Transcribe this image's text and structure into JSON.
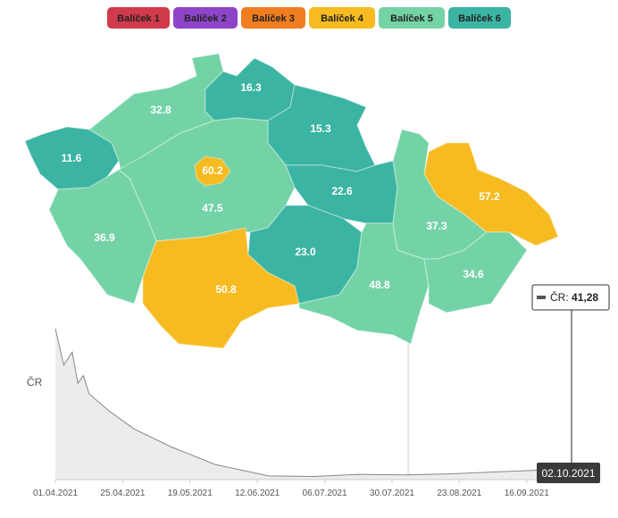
{
  "legend": [
    {
      "name": "Balíček 1",
      "color": "#d13a4a"
    },
    {
      "name": "Balíček 2",
      "color": "#8e44c8"
    },
    {
      "name": "Balíček 3",
      "color": "#f07d20"
    },
    {
      "name": "Balíček 4",
      "color": "#f6bb21"
    },
    {
      "name": "Balíček 5",
      "color": "#74d3a6"
    },
    {
      "name": "Balíček 6",
      "color": "#3cb4a3"
    }
  ],
  "map": {
    "regions": [
      {
        "value": 11.6,
        "group": 5
      },
      {
        "value": 32.8,
        "group": 4
      },
      {
        "value": 16.3,
        "group": 5
      },
      {
        "value": 15.3,
        "group": 5
      },
      {
        "value": 47.5,
        "group": 4
      },
      {
        "value": 60.2,
        "group": 3
      },
      {
        "value": 22.6,
        "group": 5
      },
      {
        "value": 36.9,
        "group": 4
      },
      {
        "value": 50.8,
        "group": 3
      },
      {
        "value": 23,
        "label": "23.0",
        "group": 5
      },
      {
        "value": 48.8,
        "group": 4
      },
      {
        "value": 37.3,
        "group": 4
      },
      {
        "value": 57.2,
        "group": 3
      },
      {
        "value": 34.6,
        "group": 4
      }
    ]
  },
  "chart_data": {
    "type": "area",
    "name": "ČR",
    "color": "#888888",
    "x": [
      "01.04.2021",
      "04.04.2021",
      "07.04.2021",
      "09.04.2021",
      "11.04.2021",
      "13.04.2021",
      "20.04.2021",
      "29.04.2021",
      "12.05.2021",
      "28.05.2021",
      "16.06.2021",
      "02.07.2021",
      "18.07.2021",
      "03.08.2021",
      "19.08.2021",
      "08.09.2021",
      "02.10.2021"
    ],
    "values": [
      580,
      440,
      490,
      370,
      400,
      330,
      265,
      195,
      127,
      58,
      14,
      12,
      20,
      18,
      22,
      31,
      41.28
    ],
    "value_labels": [
      null,
      null,
      null,
      null,
      null,
      null,
      null,
      null,
      null,
      null,
      null,
      null,
      null,
      null,
      null,
      null,
      "41,28"
    ],
    "xticks": [
      "01.04.2021",
      "25.04.2021",
      "19.05.2021",
      "12.06.2021",
      "06.07.2021",
      "30.07.2021",
      "23.08.2021",
      "16.09.2021"
    ]
  }
}
